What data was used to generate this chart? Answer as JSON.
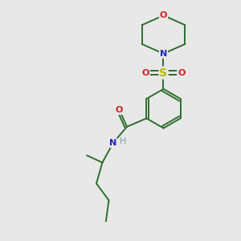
{
  "background_color": "#e8e8e8",
  "bond_color": "#2d6e2d",
  "nitrogen_color": "#2020cc",
  "oxygen_color": "#cc2020",
  "sulfur_color": "#b8b800",
  "hydrogen_color": "#7a9e9a",
  "fig_size": [
    3.0,
    3.0
  ],
  "dpi": 100,
  "xlim": [
    0,
    10
  ],
  "ylim": [
    0,
    10
  ]
}
